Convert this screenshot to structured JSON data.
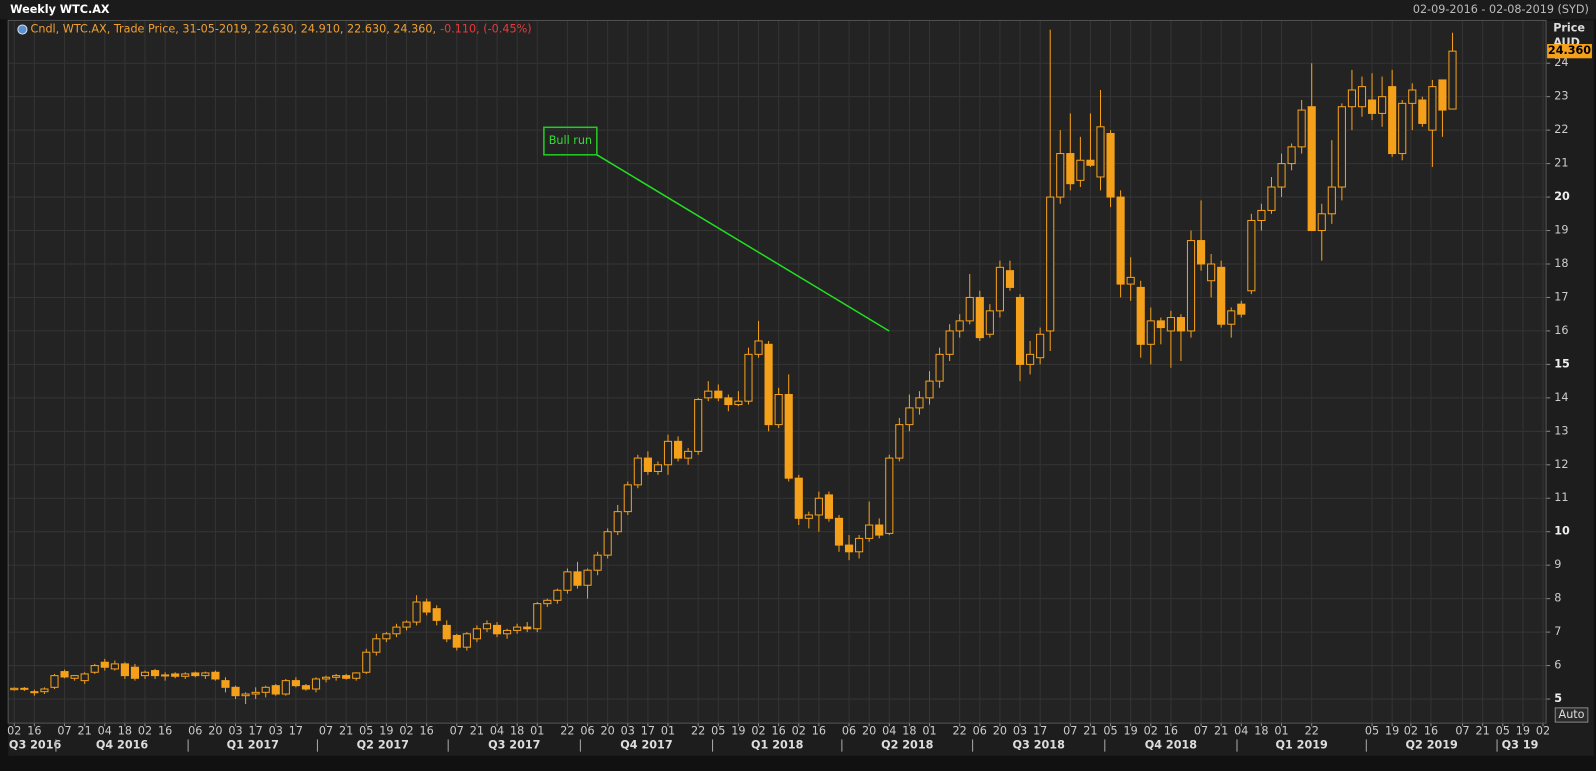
{
  "chart_data": {
    "type": "candlestick",
    "title": "Weekly WTC.AX",
    "subtitle": "02-09-2016 - 02-08-2019 (SYD)",
    "legend_text": "Cndl, WTC.AX, Trade Price, 31-05-2019, 22.630, 24.910, 22.630, 24.360,",
    "legend_change": "-0.110, (-0.45%)",
    "y_axis_label": "Price",
    "y_axis_unit": "AUD",
    "annotation": "Bull run",
    "auto_button": "Auto",
    "last_price": {
      "value": 24.36,
      "label": "24.360"
    },
    "up_fill": "#232323",
    "down_fill": "#f5a01a",
    "wick_color": "#f5a01a",
    "grid": true,
    "x": [
      "02-09-2016",
      "09-09-2016",
      "16-09-2016",
      "23-09-2016",
      "30-09-2016",
      "07-10-2016",
      "14-10-2016",
      "21-10-2016",
      "28-10-2016",
      "04-11-2016",
      "11-11-2016",
      "18-11-2016",
      "25-11-2016",
      "02-12-2016",
      "09-12-2016",
      "16-12-2016",
      "23-12-2016",
      "30-12-2016",
      "06-01-2017",
      "13-01-2017",
      "20-01-2017",
      "27-01-2017",
      "03-02-2017",
      "10-02-2017",
      "17-02-2017",
      "24-02-2017",
      "03-03-2017",
      "10-03-2017",
      "17-03-2017",
      "24-03-2017",
      "31-03-2017",
      "07-04-2017",
      "14-04-2017",
      "21-04-2017",
      "28-04-2017",
      "05-05-2017",
      "12-05-2017",
      "19-05-2017",
      "26-05-2017",
      "02-06-2017",
      "09-06-2017",
      "16-06-2017",
      "23-06-2017",
      "30-06-2017",
      "07-07-2017",
      "14-07-2017",
      "21-07-2017",
      "28-07-2017",
      "04-08-2017",
      "11-08-2017",
      "18-08-2017",
      "25-08-2017",
      "01-09-2017",
      "08-09-2017",
      "15-09-2017",
      "22-09-2017",
      "29-09-2017",
      "06-10-2017",
      "13-10-2017",
      "20-10-2017",
      "27-10-2017",
      "03-11-2017",
      "10-11-2017",
      "17-11-2017",
      "24-11-2017",
      "01-12-2017",
      "08-12-2017",
      "15-12-2017",
      "22-12-2017",
      "29-12-2017",
      "05-01-2018",
      "12-01-2018",
      "19-01-2018",
      "26-01-2018",
      "02-02-2018",
      "09-02-2018",
      "16-02-2018",
      "23-02-2018",
      "02-03-2018",
      "09-03-2018",
      "16-03-2018",
      "23-03-2018",
      "30-03-2018",
      "06-04-2018",
      "13-04-2018",
      "20-04-2018",
      "27-04-2018",
      "04-05-2018",
      "11-05-2018",
      "18-05-2018",
      "25-05-2018",
      "01-06-2018",
      "08-06-2018",
      "15-06-2018",
      "22-06-2018",
      "29-06-2018",
      "06-07-2018",
      "13-07-2018",
      "20-07-2018",
      "27-07-2018",
      "03-08-2018",
      "10-08-2018",
      "17-08-2018",
      "24-08-2018",
      "31-08-2018",
      "07-09-2018",
      "14-09-2018",
      "21-09-2018",
      "28-09-2018",
      "05-10-2018",
      "12-10-2018",
      "19-10-2018",
      "26-10-2018",
      "02-11-2018",
      "09-11-2018",
      "16-11-2018",
      "23-11-2018",
      "30-11-2018",
      "07-12-2018",
      "14-12-2018",
      "21-12-2018",
      "28-12-2018",
      "04-01-2019",
      "11-01-2019",
      "18-01-2019",
      "25-01-2019",
      "01-02-2019",
      "08-02-2019",
      "15-02-2019",
      "22-02-2019",
      "01-03-2019",
      "08-03-2019",
      "15-03-2019",
      "22-03-2019",
      "29-03-2019",
      "05-04-2019",
      "12-04-2019",
      "19-04-2019",
      "26-04-2019",
      "03-05-2019",
      "10-05-2019",
      "17-05-2019",
      "24-05-2019",
      "31-05-2019"
    ],
    "open": [
      5.28,
      5.32,
      5.2,
      5.22,
      5.35,
      5.82,
      5.62,
      5.55,
      5.8,
      6.1,
      5.9,
      6.05,
      5.95,
      5.7,
      5.85,
      5.7,
      5.75,
      5.68,
      5.78,
      5.7,
      5.8,
      5.55,
      5.35,
      5.1,
      5.15,
      5.2,
      5.4,
      5.15,
      5.55,
      5.4,
      5.3,
      5.6,
      5.65,
      5.7,
      5.62,
      5.8,
      6.4,
      6.8,
      6.95,
      7.15,
      7.3,
      7.9,
      7.7,
      7.2,
      6.9,
      6.55,
      6.8,
      7.1,
      7.2,
      6.95,
      7.05,
      7.15,
      7.1,
      7.85,
      7.95,
      8.25,
      8.8,
      8.4,
      8.85,
      9.3,
      10,
      10.6,
      11.4,
      12.2,
      11.8,
      12,
      12.7,
      12.2,
      12.4,
      14,
      14.2,
      14,
      13.8,
      13.9,
      15.3,
      15.6,
      13.2,
      14.1,
      11.6,
      10.4,
      10.5,
      11.1,
      10.4,
      9.6,
      9.4,
      9.8,
      10.2,
      9.95,
      12.2,
      13.2,
      13.7,
      14,
      14.5,
      15.3,
      16,
      16.3,
      17,
      15.9,
      16.6,
      17.8,
      17,
      15,
      15.2,
      16,
      20,
      21.3,
      20.5,
      21.1,
      20.6,
      21.9,
      20,
      17.4,
      17.3,
      15.6,
      16.3,
      16,
      16.4,
      16,
      18.7,
      17.5,
      17.9,
      16.2,
      16.8,
      17.2,
      19.3,
      19.6,
      20.3,
      21,
      21.5,
      22.7,
      19,
      19.5,
      20.3,
      22.7,
      22.7,
      22.9,
      22.5,
      23.3,
      21.3,
      22.8,
      22.9,
      22,
      23.5,
      22.63
    ],
    "high": [
      5.35,
      5.36,
      5.28,
      5.35,
      5.75,
      5.88,
      5.72,
      5.8,
      6.05,
      6.2,
      6.15,
      6.1,
      6.05,
      5.85,
      5.9,
      5.8,
      5.8,
      5.8,
      5.82,
      5.82,
      5.85,
      5.65,
      5.4,
      5.2,
      5.35,
      5.4,
      5.45,
      5.6,
      5.65,
      5.45,
      5.65,
      5.7,
      5.75,
      5.75,
      5.8,
      6.5,
      6.95,
      7,
      7.25,
      7.35,
      8.1,
      8,
      7.8,
      7.35,
      6.95,
      7,
      7.2,
      7.35,
      7.3,
      7.1,
      7.25,
      7.3,
      7.9,
      8,
      8.3,
      8.9,
      9.1,
      8.9,
      9.4,
      10.1,
      10.8,
      11.5,
      12.3,
      12.4,
      12.1,
      12.9,
      12.85,
      12.5,
      14,
      14.5,
      14.4,
      14.1,
      14.2,
      15.5,
      16.3,
      15.7,
      14.3,
      14.7,
      11.7,
      10.6,
      11.2,
      11.2,
      10.5,
      9.9,
      9.9,
      10.9,
      10.4,
      12.3,
      13.4,
      14.1,
      14.2,
      14.8,
      15.5,
      16.2,
      16.5,
      17.7,
      17.2,
      16.8,
      18.1,
      18.1,
      17.1,
      15.7,
      16.1,
      25,
      22,
      22.5,
      21.8,
      22.5,
      23.2,
      22,
      20.2,
      18.2,
      17.5,
      16.7,
      16.4,
      16.6,
      16.5,
      19,
      19.9,
      18.3,
      18.1,
      16.7,
      16.9,
      19.5,
      19.8,
      20.6,
      21.3,
      21.6,
      22.9,
      24,
      19.8,
      21.7,
      22.8,
      23.8,
      23.6,
      23.7,
      23.6,
      23.8,
      22.9,
      23.4,
      23,
      23.5,
      23.5,
      24.91
    ],
    "low": [
      5.25,
      5.24,
      5.1,
      5.15,
      5.3,
      5.62,
      5.55,
      5.45,
      5.75,
      5.85,
      5.85,
      5.6,
      5.55,
      5.6,
      5.6,
      5.55,
      5.62,
      5.6,
      5.65,
      5.6,
      5.55,
      5.2,
      5,
      4.85,
      5,
      5.05,
      5.1,
      5.1,
      5.35,
      5.25,
      5.2,
      5.5,
      5.55,
      5.58,
      5.55,
      5.75,
      6.3,
      6.7,
      6.85,
      7.05,
      7.2,
      7.5,
      7.2,
      6.7,
      6.45,
      6.45,
      6.7,
      7,
      6.85,
      6.8,
      6.95,
      7,
      7,
      7.75,
      7.85,
      8.15,
      8.3,
      8,
      8.7,
      9.2,
      9.9,
      10.5,
      11.3,
      11.7,
      11.7,
      11.7,
      12.1,
      12,
      12.3,
      13.9,
      13.9,
      13.6,
      13.75,
      13.8,
      15.2,
      13,
      13.1,
      11.5,
      10.2,
      10.1,
      10,
      10.3,
      9.4,
      9.15,
      9.2,
      9.7,
      9.8,
      9.9,
      12.1,
      13,
      13.5,
      13.8,
      14.3,
      15.1,
      15.8,
      16.2,
      15.7,
      15.8,
      16.4,
      17.2,
      14.5,
      14.7,
      15,
      15.4,
      19.8,
      20.2,
      20.3,
      20.9,
      20.2,
      19.7,
      17,
      16.9,
      15.2,
      15,
      15.6,
      14.9,
      15.1,
      15.8,
      17.8,
      17,
      16.1,
      15.8,
      16.4,
      17.1,
      19,
      19.5,
      20,
      20.8,
      21.3,
      19,
      18.1,
      19.2,
      19.9,
      22,
      22.4,
      22.3,
      22.1,
      21.2,
      21.1,
      22,
      22.1,
      20.9,
      21.8,
      22.63
    ],
    "close": [
      5.32,
      5.3,
      5.22,
      5.3,
      5.7,
      5.66,
      5.7,
      5.75,
      6,
      5.95,
      6.05,
      5.7,
      5.62,
      5.8,
      5.7,
      5.72,
      5.68,
      5.75,
      5.7,
      5.78,
      5.6,
      5.35,
      5.1,
      5.15,
      5.2,
      5.35,
      5.15,
      5.55,
      5.4,
      5.3,
      5.6,
      5.65,
      5.7,
      5.62,
      5.78,
      6.4,
      6.8,
      6.95,
      7.15,
      7.3,
      7.9,
      7.6,
      7.35,
      6.8,
      6.55,
      6.95,
      7.1,
      7.25,
      6.95,
      7.05,
      7.15,
      7.1,
      7.85,
      7.95,
      8.25,
      8.8,
      8.4,
      8.85,
      9.3,
      10,
      10.6,
      11.4,
      12.2,
      11.8,
      12,
      12.7,
      12.2,
      12.4,
      13.95,
      14.2,
      14,
      13.8,
      13.9,
      15.3,
      15.7,
      13.2,
      14.1,
      11.6,
      10.4,
      10.5,
      11,
      10.4,
      9.6,
      9.4,
      9.8,
      10.2,
      9.9,
      12.2,
      13.2,
      13.7,
      14,
      14.5,
      15.3,
      16,
      16.3,
      17,
      15.8,
      16.6,
      17.9,
      17.3,
      15,
      15.3,
      15.9,
      20,
      21.3,
      20.4,
      21.1,
      20.95,
      22.1,
      20,
      17.4,
      17.6,
      15.6,
      16.3,
      16.1,
      16.4,
      16,
      18.7,
      18,
      18,
      16.2,
      16.6,
      16.5,
      19.3,
      19.6,
      20.3,
      21,
      21.5,
      22.6,
      19,
      19.5,
      20.3,
      22.7,
      23.2,
      23.3,
      22.5,
      23,
      21.3,
      22.8,
      23.2,
      22.2,
      23.3,
      22.6,
      24.36
    ],
    "xlim": [
      "02-09-2016",
      "02-08-2019"
    ],
    "xticks": [
      {
        "value": "02-09-2016",
        "label": "02"
      },
      {
        "value": "16-09-2016",
        "label": "16"
      },
      {
        "value": "07-10-2016",
        "label": "07"
      },
      {
        "value": "21-10-2016",
        "label": "21"
      },
      {
        "value": "04-11-2016",
        "label": "04"
      },
      {
        "value": "18-11-2016",
        "label": "18"
      },
      {
        "value": "02-12-2016",
        "label": "02"
      },
      {
        "value": "16-12-2016",
        "label": "16"
      },
      {
        "value": "06-01-2017",
        "label": "06"
      },
      {
        "value": "20-01-2017",
        "label": "20"
      },
      {
        "value": "03-02-2017",
        "label": "03"
      },
      {
        "value": "17-02-2017",
        "label": "17"
      },
      {
        "value": "03-03-2017",
        "label": "03"
      },
      {
        "value": "17-03-2017",
        "label": "17"
      },
      {
        "value": "07-04-2017",
        "label": "07"
      },
      {
        "value": "21-04-2017",
        "label": "21"
      },
      {
        "value": "05-05-2017",
        "label": "05"
      },
      {
        "value": "19-05-2017",
        "label": "19"
      },
      {
        "value": "02-06-2017",
        "label": "02"
      },
      {
        "value": "16-06-2017",
        "label": "16"
      },
      {
        "value": "07-07-2017",
        "label": "07"
      },
      {
        "value": "21-07-2017",
        "label": "21"
      },
      {
        "value": "04-08-2017",
        "label": "04"
      },
      {
        "value": "18-08-2017",
        "label": "18"
      },
      {
        "value": "01-09-2017",
        "label": "01"
      },
      {
        "value": "22-09-2017",
        "label": "22"
      },
      {
        "value": "06-10-2017",
        "label": "06"
      },
      {
        "value": "20-10-2017",
        "label": "20"
      },
      {
        "value": "03-11-2017",
        "label": "03"
      },
      {
        "value": "17-11-2017",
        "label": "17"
      },
      {
        "value": "01-12-2017",
        "label": "01"
      },
      {
        "value": "22-12-2017",
        "label": "22"
      },
      {
        "value": "05-01-2018",
        "label": "05"
      },
      {
        "value": "19-01-2018",
        "label": "19"
      },
      {
        "value": "02-02-2018",
        "label": "02"
      },
      {
        "value": "16-02-2018",
        "label": "16"
      },
      {
        "value": "02-03-2018",
        "label": "02"
      },
      {
        "value": "16-03-2018",
        "label": "16"
      },
      {
        "value": "06-04-2018",
        "label": "06"
      },
      {
        "value": "20-04-2018",
        "label": "20"
      },
      {
        "value": "04-05-2018",
        "label": "04"
      },
      {
        "value": "18-05-2018",
        "label": "18"
      },
      {
        "value": "01-06-2018",
        "label": "01"
      },
      {
        "value": "22-06-2018",
        "label": "22"
      },
      {
        "value": "06-07-2018",
        "label": "06"
      },
      {
        "value": "20-07-2018",
        "label": "20"
      },
      {
        "value": "03-08-2018",
        "label": "03"
      },
      {
        "value": "17-08-2018",
        "label": "17"
      },
      {
        "value": "07-09-2018",
        "label": "07"
      },
      {
        "value": "21-09-2018",
        "label": "21"
      },
      {
        "value": "05-10-2018",
        "label": "05"
      },
      {
        "value": "19-10-2018",
        "label": "19"
      },
      {
        "value": "02-11-2018",
        "label": "02"
      },
      {
        "value": "16-11-2018",
        "label": "16"
      },
      {
        "value": "07-12-2018",
        "label": "07"
      },
      {
        "value": "21-12-2018",
        "label": "21"
      },
      {
        "value": "04-01-2019",
        "label": "04"
      },
      {
        "value": "18-01-2019",
        "label": "18"
      },
      {
        "value": "01-02-2019",
        "label": "01"
      },
      {
        "value": "22-02-2019",
        "label": "22"
      },
      {
        "value": "05-04-2019",
        "label": "05"
      },
      {
        "value": "19-04-2019",
        "label": "19"
      },
      {
        "value": "02-05-2019",
        "label": "02"
      },
      {
        "value": "16-05-2019",
        "label": "16"
      },
      {
        "value": "07-06-2019",
        "label": "07"
      },
      {
        "value": "21-06-2019",
        "label": "21"
      },
      {
        "value": "05-07-2019",
        "label": "05"
      },
      {
        "value": "19-07-2019",
        "label": "19"
      },
      {
        "value": "02-08-2019",
        "label": "02"
      }
    ],
    "quarters": [
      "Q3 2016",
      "Q4 2016",
      "Q1 2017",
      "Q2 2017",
      "Q3 2017",
      "Q4 2017",
      "Q1 2018",
      "Q2 2018",
      "Q3 2018",
      "Q4 2018",
      "Q1 2019",
      "Q2 2019",
      "Q3 19"
    ],
    "ylim": [
      4.28,
      25.28
    ],
    "yticks": [
      5,
      6,
      7,
      8,
      9,
      10,
      11,
      12,
      13,
      14,
      15,
      16,
      17,
      18,
      19,
      20,
      21,
      22,
      23,
      24
    ]
  }
}
